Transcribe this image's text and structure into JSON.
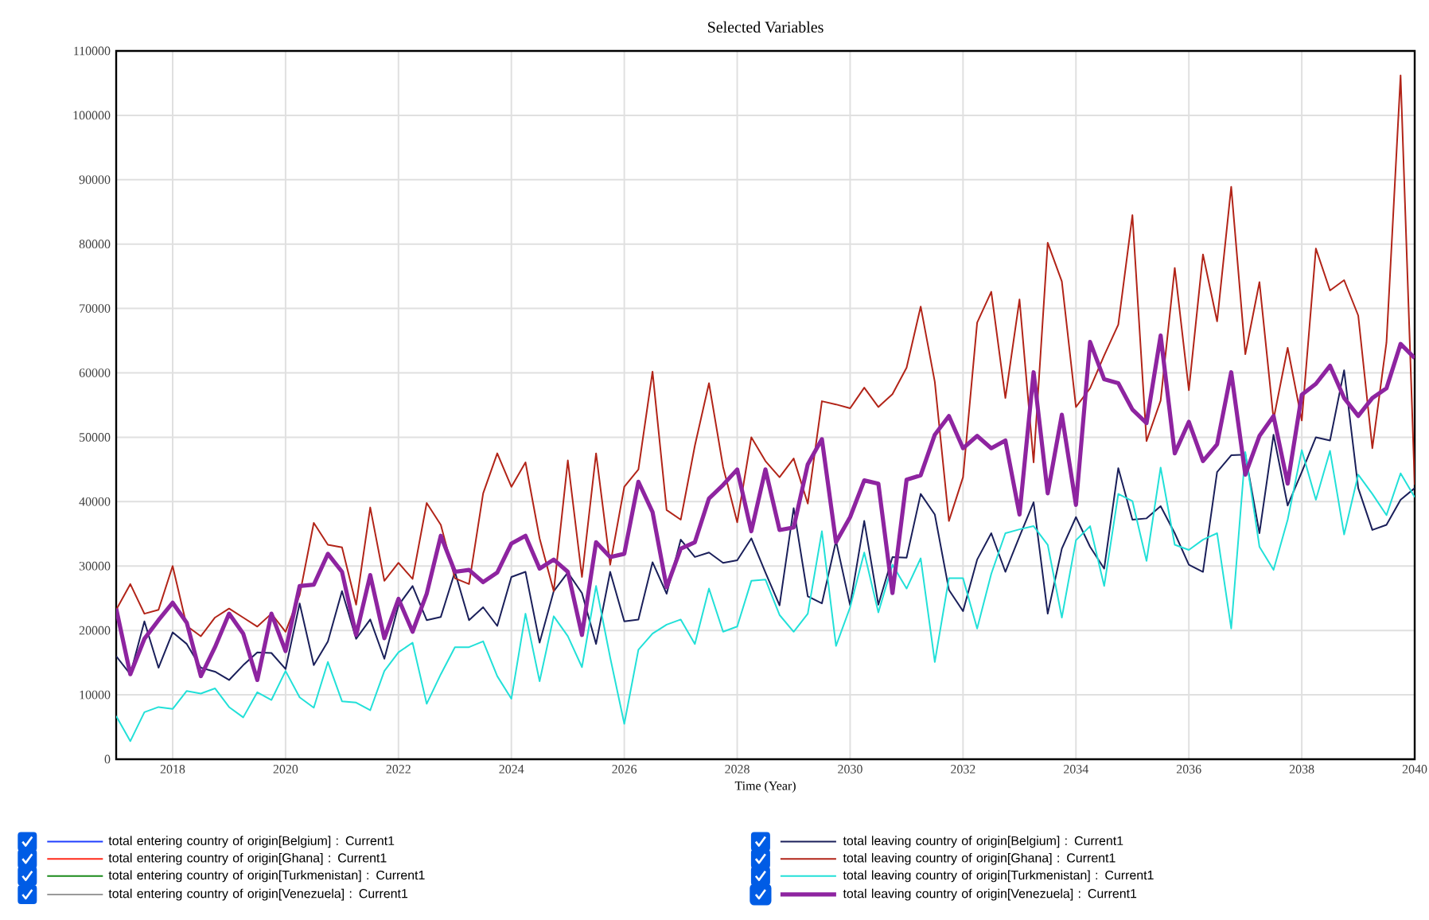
{
  "chart_data": {
    "type": "line",
    "title": "Selected Variables",
    "xlabel": "Time (Year)",
    "x": [
      2017,
      2017.25,
      2017.5,
      2017.75,
      2018,
      2018.25,
      2018.5,
      2018.75,
      2019,
      2019.25,
      2019.5,
      2019.75,
      2020,
      2020.25,
      2020.5,
      2020.75,
      2021,
      2021.25,
      2021.5,
      2021.75,
      2022,
      2022.25,
      2022.5,
      2022.75,
      2023,
      2023.25,
      2023.5,
      2023.75,
      2024,
      2024.25,
      2024.5,
      2024.75,
      2025,
      2025.25,
      2025.5,
      2025.75,
      2026,
      2026.25,
      2026.5,
      2026.75,
      2027,
      2027.25,
      2027.5,
      2027.75,
      2028,
      2028.25,
      2028.5,
      2028.75,
      2029,
      2029.25,
      2029.5,
      2029.75,
      2030,
      2030.25,
      2030.5,
      2030.75,
      2031,
      2031.25,
      2031.5,
      2031.75,
      2032,
      2032.25,
      2032.5,
      2032.75,
      2033,
      2033.25,
      2033.5,
      2033.75,
      2034,
      2034.25,
      2034.5,
      2034.75,
      2035,
      2035.25,
      2035.5,
      2035.75,
      2036,
      2036.25,
      2036.5,
      2036.75,
      2037,
      2037.25,
      2037.5,
      2037.75,
      2038,
      2038.25,
      2038.5,
      2038.75,
      2039,
      2039.25,
      2039.5,
      2039.75,
      2040
    ],
    "xlim": [
      2017,
      2040
    ],
    "xticks": [
      2018,
      2020,
      2022,
      2024,
      2026,
      2028,
      2030,
      2032,
      2034,
      2036,
      2038,
      2040
    ],
    "ylim": [
      0,
      110000
    ],
    "yticks": [
      0,
      10000,
      20000,
      30000,
      40000,
      50000,
      60000,
      70000,
      80000,
      90000,
      100000,
      110000
    ],
    "grid": true,
    "legend": "bottom",
    "marker": "none",
    "line_style": "solid",
    "series": [
      {
        "name": "total entering country of origin[Belgium] : Current1",
        "color": "#1f3fff",
        "values": [
          null,
          null,
          null,
          null,
          null,
          null,
          null,
          null,
          null,
          null,
          null,
          null,
          null,
          null,
          null,
          null,
          null,
          null,
          null,
          null,
          null,
          null,
          null,
          null,
          null,
          null,
          null,
          null,
          null,
          null,
          null,
          null,
          null,
          null,
          null,
          null,
          null,
          null,
          null,
          null,
          null,
          null,
          null,
          null,
          null,
          null,
          null,
          null,
          null,
          null,
          null,
          null,
          null,
          null,
          null,
          null,
          null,
          null,
          null,
          null,
          null,
          null,
          null,
          null,
          null,
          null,
          null,
          null,
          null,
          null,
          null,
          null,
          null,
          null,
          null,
          null,
          null,
          null,
          null,
          null,
          null,
          null,
          null,
          null,
          null,
          null,
          null,
          null,
          null,
          null,
          null,
          null,
          null
        ]
      },
      {
        "name": "total entering country of origin[Ghana] : Current1",
        "color": "#ff2a1a",
        "values": [
          null,
          null,
          null,
          null,
          null,
          null,
          null,
          null,
          null,
          null,
          null,
          null,
          null,
          null,
          null,
          null,
          null,
          null,
          null,
          null,
          null,
          null,
          null,
          null,
          null,
          null,
          null,
          null,
          null,
          null,
          null,
          null,
          null,
          null,
          null,
          null,
          null,
          null,
          null,
          null,
          null,
          null,
          null,
          null,
          null,
          null,
          null,
          null,
          null,
          null,
          null,
          null,
          null,
          null,
          null,
          null,
          null,
          null,
          null,
          null,
          null,
          null,
          null,
          null,
          null,
          null,
          null,
          null,
          null,
          null,
          null,
          null,
          null,
          null,
          null,
          null,
          null,
          null,
          null,
          null,
          null,
          null,
          null,
          null,
          null,
          null,
          null,
          null,
          null,
          null,
          null,
          null,
          null
        ]
      },
      {
        "name": "total entering country of origin[Turkmenistan] : Current1",
        "color": "#1a8a1a",
        "values": [
          null,
          null,
          null,
          null,
          null,
          null,
          null,
          null,
          null,
          null,
          null,
          null,
          null,
          null,
          null,
          null,
          null,
          null,
          null,
          null,
          null,
          null,
          null,
          null,
          null,
          null,
          null,
          null,
          null,
          null,
          null,
          null,
          null,
          null,
          null,
          null,
          null,
          null,
          null,
          null,
          null,
          null,
          null,
          null,
          null,
          null,
          null,
          null,
          null,
          null,
          null,
          null,
          null,
          null,
          null,
          null,
          null,
          null,
          null,
          null,
          null,
          null,
          null,
          null,
          null,
          null,
          null,
          null,
          null,
          null,
          null,
          null,
          null,
          null,
          null,
          null,
          null,
          null,
          null,
          null,
          null,
          null,
          null,
          null,
          null,
          null,
          null,
          null,
          null,
          null,
          null,
          null,
          null
        ]
      },
      {
        "name": "total entering country of origin[Venezuela] : Current1",
        "color": "#9a9a9a",
        "values": [
          null,
          null,
          null,
          null,
          null,
          null,
          null,
          null,
          null,
          null,
          null,
          null,
          null,
          null,
          null,
          null,
          null,
          null,
          null,
          null,
          null,
          null,
          null,
          null,
          null,
          null,
          null,
          null,
          null,
          null,
          null,
          null,
          null,
          null,
          null,
          null,
          null,
          null,
          null,
          null,
          null,
          null,
          null,
          null,
          null,
          null,
          null,
          null,
          null,
          null,
          null,
          null,
          null,
          null,
          null,
          null,
          null,
          null,
          null,
          null,
          null,
          null,
          null,
          null,
          null,
          null,
          null,
          null,
          null,
          null,
          null,
          null,
          null,
          null,
          null,
          null,
          null,
          null,
          null,
          null,
          null,
          null,
          null,
          null,
          null,
          null,
          null,
          null,
          null,
          null,
          null,
          null,
          null
        ]
      },
      {
        "name": "total leaving country of origin[Belgium] : Current1",
        "color": "#1a1f5a",
        "values": [
          16000,
          13200,
          21400,
          14200,
          19700,
          17900,
          14200,
          13600,
          12300,
          14600,
          16600,
          16500,
          14000,
          24200,
          14600,
          18300,
          26100,
          18700,
          21700,
          15600,
          23900,
          26900,
          21600,
          22100,
          29100,
          21600,
          23600,
          20700,
          28300,
          29100,
          18100,
          26100,
          29000,
          25800,
          17900,
          29100,
          21400,
          21700,
          30600,
          25700,
          34100,
          31400,
          32100,
          30500,
          30900,
          34300,
          29000,
          23900,
          39000,
          25300,
          24200,
          33900,
          23900,
          37000,
          24000,
          31400,
          31300,
          41200,
          38000,
          26300,
          23000,
          31000,
          35100,
          29100,
          34600,
          39900,
          22600,
          32700,
          37600,
          33000,
          29600,
          45200,
          37200,
          37400,
          39300,
          35100,
          30200,
          29100,
          44600,
          47200,
          47300,
          35100,
          50400,
          39400,
          44600,
          50000,
          49500,
          60400,
          42100,
          35600,
          36400,
          40300,
          42100
        ]
      },
      {
        "name": "total leaving country of origin[Ghana] : Current1",
        "color": "#b22418",
        "values": [
          23200,
          27200,
          22600,
          23200,
          30000,
          20700,
          19100,
          22000,
          23400,
          22000,
          20600,
          22600,
          19800,
          25500,
          36700,
          33300,
          32900,
          24000,
          39100,
          27700,
          30500,
          28000,
          39800,
          36400,
          28100,
          27200,
          41300,
          47500,
          42300,
          46100,
          34300,
          26100,
          46400,
          28300,
          47500,
          30200,
          42300,
          45000,
          60200,
          38700,
          37200,
          48700,
          58400,
          45400,
          36800,
          50000,
          46300,
          43800,
          46700,
          39700,
          55600,
          55100,
          54500,
          57700,
          54700,
          56700,
          60800,
          70300,
          58600,
          37000,
          43800,
          67800,
          72600,
          56100,
          71400,
          46100,
          80200,
          74200,
          54700,
          57600,
          62700,
          67500,
          84500,
          49400,
          55700,
          76300,
          57300,
          78400,
          68000,
          88900,
          62900,
          74100,
          52800,
          63900,
          52600,
          79300,
          72800,
          74400,
          68900,
          48300,
          64700,
          106200,
          42600
        ]
      },
      {
        "name": "total leaving country of origin[Turkmenistan] : Current1",
        "color": "#22e0d8",
        "values": [
          6700,
          2800,
          7300,
          8100,
          7800,
          10600,
          10200,
          11000,
          8100,
          6500,
          10400,
          9200,
          13700,
          9600,
          8000,
          15100,
          9000,
          8800,
          7600,
          13700,
          16600,
          18100,
          8600,
          13200,
          17400,
          17400,
          18300,
          12900,
          9400,
          22600,
          12100,
          22200,
          19100,
          14300,
          26900,
          15800,
          5500,
          17000,
          19500,
          20900,
          21700,
          17900,
          26500,
          19800,
          20600,
          27700,
          27900,
          22400,
          19800,
          22600,
          35400,
          17600,
          23600,
          32100,
          22800,
          30200,
          26500,
          31200,
          15100,
          28100,
          28100,
          20300,
          28800,
          35100,
          35700,
          36200,
          33300,
          22000,
          34000,
          36200,
          26900,
          41200,
          40100,
          30800,
          45300,
          33300,
          32500,
          34100,
          35100,
          20300,
          47700,
          33000,
          29400,
          37200,
          48000,
          40300,
          47900,
          34900,
          44200,
          41200,
          37900,
          44400,
          40700
        ]
      },
      {
        "name": "total leaving country of origin[Venezuela] : Current1",
        "color": "#8e24a0",
        "values": [
          23400,
          13200,
          18700,
          21600,
          24300,
          21200,
          12900,
          17400,
          22600,
          19500,
          12300,
          22600,
          16800,
          26900,
          27100,
          31900,
          29100,
          19300,
          28600,
          18800,
          24900,
          19800,
          25700,
          34700,
          29100,
          29400,
          27500,
          29000,
          33500,
          34700,
          29600,
          31000,
          29100,
          19300,
          33700,
          31400,
          31900,
          43100,
          38400,
          26700,
          32700,
          33700,
          40500,
          42600,
          45000,
          35400,
          45000,
          35600,
          36000,
          45800,
          49700,
          33700,
          37600,
          43300,
          42800,
          25800,
          43400,
          44100,
          50400,
          53300,
          48300,
          50200,
          48300,
          49500,
          38000,
          60100,
          41300,
          53500,
          39500,
          64800,
          59000,
          58400,
          54300,
          52200,
          65800,
          47500,
          52400,
          46300,
          48900,
          60100,
          44200,
          50200,
          53300,
          42800,
          56600,
          58300,
          61100,
          56100,
          53300,
          56100,
          57600,
          64500,
          62300
        ]
      }
    ]
  }
}
